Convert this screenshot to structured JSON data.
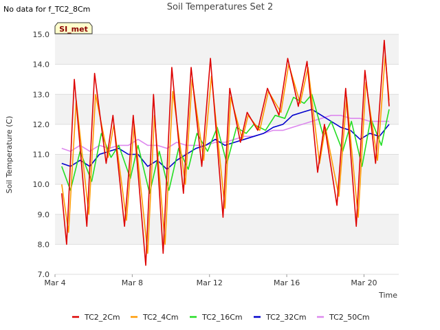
{
  "no_data_text": "No data for f_TC2_8Cm",
  "tag_label": "SI_met",
  "chart_data": {
    "type": "line",
    "title": "Soil Temperatures Set 2",
    "xlabel": "Time",
    "ylabel": "Soil Temperature (C)",
    "xlim": [
      0,
      17.8
    ],
    "ylim": [
      7.0,
      15.0
    ],
    "yticks": [
      7.0,
      8.0,
      9.0,
      10.0,
      11.0,
      12.0,
      13.0,
      14.0,
      15.0
    ],
    "xticks": [
      {
        "day": 0,
        "label": "Mar 4"
      },
      {
        "day": 4,
        "label": "Mar 8"
      },
      {
        "day": 8,
        "label": "Mar 12"
      },
      {
        "day": 12,
        "label": "Mar 16"
      },
      {
        "day": 16,
        "label": "Mar 20"
      }
    ],
    "legend_position": "bottom",
    "series": [
      {
        "name": "TC2_2Cm",
        "color": "#dd0000",
        "points": [
          [
            0.35,
            9.7
          ],
          [
            0.6,
            8.0
          ],
          [
            1.0,
            13.5
          ],
          [
            1.65,
            8.6
          ],
          [
            2.05,
            13.7
          ],
          [
            2.65,
            10.7
          ],
          [
            3.0,
            12.3
          ],
          [
            3.6,
            8.6
          ],
          [
            4.05,
            12.3
          ],
          [
            4.7,
            7.3
          ],
          [
            5.1,
            13.0
          ],
          [
            5.6,
            7.7
          ],
          [
            6.05,
            13.9
          ],
          [
            6.65,
            9.7
          ],
          [
            7.05,
            13.9
          ],
          [
            7.6,
            10.6
          ],
          [
            8.05,
            14.2
          ],
          [
            8.7,
            8.9
          ],
          [
            9.05,
            13.2
          ],
          [
            9.6,
            11.4
          ],
          [
            9.95,
            12.4
          ],
          [
            10.5,
            11.8
          ],
          [
            11.0,
            13.2
          ],
          [
            11.6,
            12.3
          ],
          [
            12.05,
            14.2
          ],
          [
            12.6,
            12.6
          ],
          [
            13.05,
            14.1
          ],
          [
            13.6,
            10.4
          ],
          [
            13.95,
            12.0
          ],
          [
            14.6,
            9.3
          ],
          [
            15.05,
            13.2
          ],
          [
            15.6,
            8.6
          ],
          [
            16.05,
            13.8
          ],
          [
            16.6,
            10.7
          ],
          [
            17.05,
            14.8
          ],
          [
            17.3,
            12.6
          ]
        ]
      },
      {
        "name": "TC2_4Cm",
        "color": "#ff9900",
        "points": [
          [
            0.35,
            10.0
          ],
          [
            0.7,
            8.4
          ],
          [
            1.1,
            12.8
          ],
          [
            1.75,
            9.0
          ],
          [
            2.1,
            13.0
          ],
          [
            2.75,
            10.9
          ],
          [
            3.05,
            12.0
          ],
          [
            3.7,
            8.8
          ],
          [
            4.1,
            12.0
          ],
          [
            4.8,
            7.7
          ],
          [
            5.15,
            12.3
          ],
          [
            5.7,
            8.0
          ],
          [
            6.1,
            13.1
          ],
          [
            6.75,
            10.0
          ],
          [
            7.1,
            13.5
          ],
          [
            7.7,
            10.8
          ],
          [
            8.1,
            13.6
          ],
          [
            8.8,
            9.2
          ],
          [
            9.1,
            12.9
          ],
          [
            9.7,
            11.5
          ],
          [
            10.0,
            12.3
          ],
          [
            10.6,
            11.8
          ],
          [
            11.05,
            13.1
          ],
          [
            11.7,
            12.4
          ],
          [
            12.1,
            14.0
          ],
          [
            12.7,
            12.7
          ],
          [
            13.1,
            13.9
          ],
          [
            13.7,
            10.7
          ],
          [
            14.0,
            11.9
          ],
          [
            14.7,
            9.6
          ],
          [
            15.1,
            12.9
          ],
          [
            15.7,
            8.9
          ],
          [
            16.1,
            13.4
          ],
          [
            16.7,
            10.8
          ],
          [
            17.1,
            14.3
          ],
          [
            17.3,
            12.8
          ]
        ]
      },
      {
        "name": "TC2_16Cm",
        "color": "#22dd22",
        "points": [
          [
            0.35,
            10.6
          ],
          [
            0.8,
            9.8
          ],
          [
            1.3,
            11.1
          ],
          [
            1.9,
            10.1
          ],
          [
            2.4,
            11.7
          ],
          [
            2.9,
            10.9
          ],
          [
            3.3,
            11.3
          ],
          [
            3.9,
            10.2
          ],
          [
            4.3,
            11.3
          ],
          [
            4.9,
            9.7
          ],
          [
            5.4,
            11.1
          ],
          [
            5.9,
            9.8
          ],
          [
            6.4,
            11.2
          ],
          [
            6.9,
            10.5
          ],
          [
            7.35,
            11.7
          ],
          [
            7.9,
            11.1
          ],
          [
            8.4,
            11.9
          ],
          [
            8.9,
            10.7
          ],
          [
            9.4,
            11.9
          ],
          [
            9.9,
            11.7
          ],
          [
            10.3,
            12.0
          ],
          [
            10.9,
            11.8
          ],
          [
            11.4,
            12.3
          ],
          [
            11.9,
            12.2
          ],
          [
            12.35,
            12.9
          ],
          [
            12.9,
            12.7
          ],
          [
            13.3,
            13.0
          ],
          [
            13.9,
            11.6
          ],
          [
            14.3,
            12.1
          ],
          [
            14.9,
            11.1
          ],
          [
            15.35,
            12.1
          ],
          [
            15.9,
            10.6
          ],
          [
            16.35,
            12.2
          ],
          [
            16.9,
            11.3
          ],
          [
            17.3,
            12.5
          ]
        ]
      },
      {
        "name": "TC2_32Cm",
        "color": "#0000cc",
        "points": [
          [
            0.35,
            10.7
          ],
          [
            0.8,
            10.6
          ],
          [
            1.3,
            10.8
          ],
          [
            1.8,
            10.6
          ],
          [
            2.3,
            11.0
          ],
          [
            2.8,
            11.1
          ],
          [
            3.3,
            11.2
          ],
          [
            3.8,
            11.0
          ],
          [
            4.3,
            11.0
          ],
          [
            4.8,
            10.6
          ],
          [
            5.3,
            10.8
          ],
          [
            5.8,
            10.5
          ],
          [
            6.3,
            10.8
          ],
          [
            6.8,
            11.0
          ],
          [
            7.3,
            11.2
          ],
          [
            7.8,
            11.3
          ],
          [
            8.3,
            11.5
          ],
          [
            8.8,
            11.3
          ],
          [
            9.3,
            11.4
          ],
          [
            9.8,
            11.5
          ],
          [
            10.3,
            11.6
          ],
          [
            10.8,
            11.7
          ],
          [
            11.3,
            11.9
          ],
          [
            11.8,
            12.0
          ],
          [
            12.3,
            12.3
          ],
          [
            12.8,
            12.4
          ],
          [
            13.3,
            12.5
          ],
          [
            13.8,
            12.3
          ],
          [
            14.3,
            12.1
          ],
          [
            14.8,
            11.9
          ],
          [
            15.3,
            11.8
          ],
          [
            15.8,
            11.5
          ],
          [
            16.3,
            11.7
          ],
          [
            16.8,
            11.6
          ],
          [
            17.3,
            12.0
          ]
        ]
      },
      {
        "name": "TC2_50Cm",
        "color": "#dd88ee",
        "points": [
          [
            0.35,
            11.2
          ],
          [
            0.8,
            11.1
          ],
          [
            1.3,
            11.3
          ],
          [
            1.8,
            11.1
          ],
          [
            2.3,
            11.3
          ],
          [
            2.8,
            11.2
          ],
          [
            3.3,
            11.3
          ],
          [
            3.8,
            11.3
          ],
          [
            4.3,
            11.5
          ],
          [
            4.8,
            11.3
          ],
          [
            5.3,
            11.3
          ],
          [
            5.8,
            11.2
          ],
          [
            6.3,
            11.4
          ],
          [
            6.8,
            11.3
          ],
          [
            7.3,
            11.3
          ],
          [
            7.8,
            11.3
          ],
          [
            8.3,
            11.4
          ],
          [
            8.8,
            11.4
          ],
          [
            9.3,
            11.5
          ],
          [
            9.8,
            11.6
          ],
          [
            10.3,
            11.6
          ],
          [
            10.8,
            11.7
          ],
          [
            11.3,
            11.8
          ],
          [
            11.8,
            11.8
          ],
          [
            12.3,
            11.9
          ],
          [
            12.8,
            12.0
          ],
          [
            13.3,
            12.1
          ],
          [
            13.8,
            12.2
          ],
          [
            14.3,
            12.3
          ],
          [
            14.8,
            12.3
          ],
          [
            15.3,
            12.2
          ],
          [
            15.8,
            12.2
          ],
          [
            16.3,
            12.1
          ],
          [
            16.8,
            12.1
          ],
          [
            17.3,
            12.1
          ]
        ]
      }
    ]
  }
}
